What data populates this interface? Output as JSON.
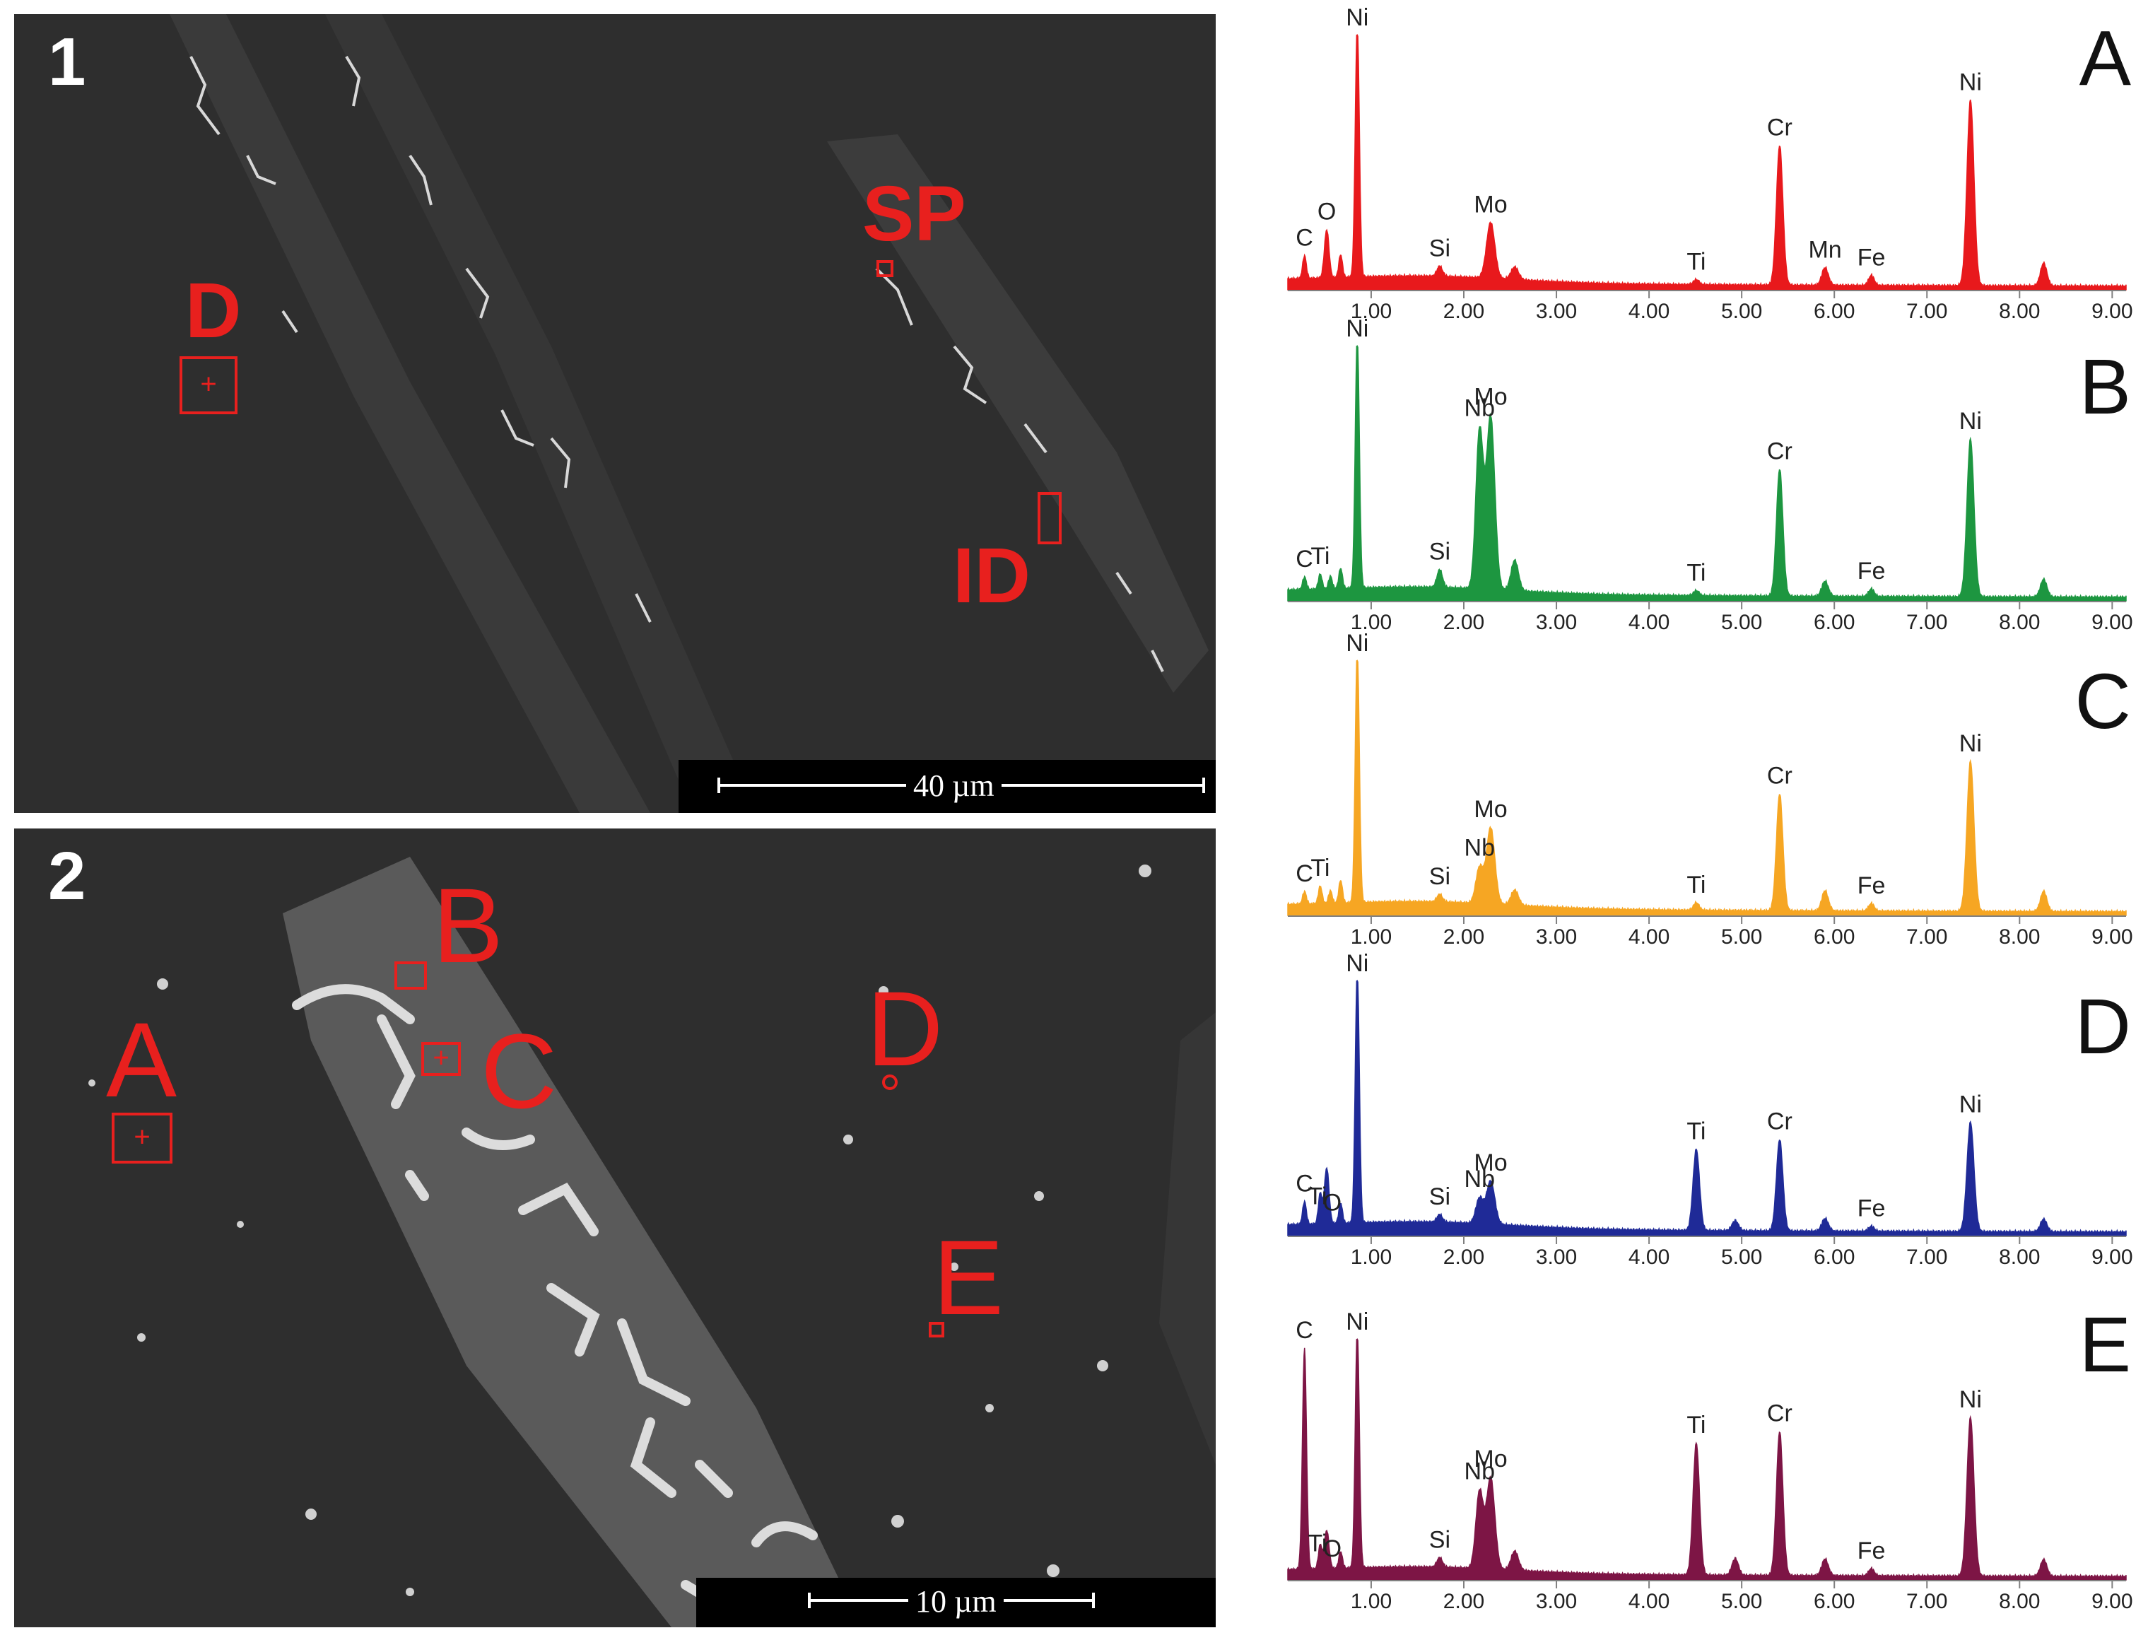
{
  "micrographs": [
    {
      "id": "1",
      "label": "1",
      "scale_label": "40 µm",
      "markers": [
        {
          "id": "D",
          "text": "D",
          "box": "square-plus"
        },
        {
          "id": "SP",
          "text": "SP",
          "box": "small"
        },
        {
          "id": "ID",
          "text": "ID",
          "box": "rect"
        }
      ]
    },
    {
      "id": "2",
      "label": "2",
      "scale_label": "10 µm",
      "markers": [
        {
          "id": "A",
          "text": "A",
          "box": "square-plus"
        },
        {
          "id": "B",
          "text": "B",
          "box": "small"
        },
        {
          "id": "C",
          "text": "C",
          "box": "small-plus"
        },
        {
          "id": "D",
          "text": "D",
          "box": "small"
        },
        {
          "id": "E",
          "text": "E",
          "box": "small"
        }
      ]
    }
  ],
  "chart_data": [
    {
      "type": "area",
      "title": "A",
      "color": "#e8191c",
      "x_ticks": [
        "1.00",
        "2.00",
        "3.00",
        "4.00",
        "5.00",
        "6.00",
        "7.00",
        "8.00",
        "9.00"
      ],
      "xlim": [
        0.1,
        9.15
      ],
      "ylim": [
        0,
        1
      ],
      "peaks": [
        {
          "x": 0.28,
          "y": 0.09,
          "w": 0.02
        },
        {
          "x": 0.52,
          "y": 0.19,
          "w": 0.025
        },
        {
          "x": 0.67,
          "y": 0.09,
          "w": 0.02
        },
        {
          "x": 0.85,
          "y": 1.0,
          "w": 0.022
        },
        {
          "x": 1.74,
          "y": 0.04,
          "w": 0.03
        },
        {
          "x": 2.29,
          "y": 0.22,
          "w": 0.045
        },
        {
          "x": 2.55,
          "y": 0.05,
          "w": 0.04
        },
        {
          "x": 4.51,
          "y": 0.02,
          "w": 0.03
        },
        {
          "x": 5.41,
          "y": 0.55,
          "w": 0.035
        },
        {
          "x": 5.9,
          "y": 0.07,
          "w": 0.035
        },
        {
          "x": 6.4,
          "y": 0.04,
          "w": 0.03
        },
        {
          "x": 7.47,
          "y": 0.73,
          "w": 0.038
        },
        {
          "x": 8.26,
          "y": 0.09,
          "w": 0.035
        }
      ],
      "labels": [
        {
          "text": "C",
          "x": 0.28,
          "y": 0.09
        },
        {
          "text": "O",
          "x": 0.52,
          "y": 0.19
        },
        {
          "text": "Ni",
          "x": 0.85,
          "y": 1.0
        },
        {
          "text": "Si",
          "x": 1.74,
          "y": 0.04
        },
        {
          "text": "Mo",
          "x": 2.29,
          "y": 0.22
        },
        {
          "text": "Ti",
          "x": 4.51,
          "y": 0.02
        },
        {
          "text": "Cr",
          "x": 5.41,
          "y": 0.55
        },
        {
          "text": "Mn",
          "x": 5.9,
          "y": 0.07
        },
        {
          "text": "Fe",
          "x": 6.4,
          "y": 0.04
        },
        {
          "text": "Ni",
          "x": 7.47,
          "y": 0.73
        }
      ]
    },
    {
      "type": "area",
      "title": "B",
      "color": "#1d9640",
      "x_ticks": [
        "1.00",
        "2.00",
        "3.00",
        "4.00",
        "5.00",
        "6.00",
        "7.00",
        "8.00",
        "9.00"
      ],
      "xlim": [
        0.1,
        9.15
      ],
      "ylim": [
        0,
        1
      ],
      "peaks": [
        {
          "x": 0.28,
          "y": 0.05,
          "w": 0.02
        },
        {
          "x": 0.45,
          "y": 0.06,
          "w": 0.02
        },
        {
          "x": 0.56,
          "y": 0.05,
          "w": 0.02
        },
        {
          "x": 0.67,
          "y": 0.08,
          "w": 0.02
        },
        {
          "x": 0.85,
          "y": 1.0,
          "w": 0.022
        },
        {
          "x": 1.74,
          "y": 0.07,
          "w": 0.03
        },
        {
          "x": 2.17,
          "y": 0.62,
          "w": 0.04
        },
        {
          "x": 2.29,
          "y": 0.68,
          "w": 0.045
        },
        {
          "x": 2.55,
          "y": 0.12,
          "w": 0.04
        },
        {
          "x": 4.51,
          "y": 0.02,
          "w": 0.03
        },
        {
          "x": 5.41,
          "y": 0.5,
          "w": 0.035
        },
        {
          "x": 5.9,
          "y": 0.06,
          "w": 0.035
        },
        {
          "x": 6.4,
          "y": 0.03,
          "w": 0.03
        },
        {
          "x": 7.47,
          "y": 0.62,
          "w": 0.038
        },
        {
          "x": 8.26,
          "y": 0.07,
          "w": 0.035
        }
      ],
      "labels": [
        {
          "text": "C",
          "x": 0.28,
          "y": 0.05
        },
        {
          "text": "Ti",
          "x": 0.45,
          "y": 0.06
        },
        {
          "text": "Ni",
          "x": 0.85,
          "y": 1.0
        },
        {
          "text": "Si",
          "x": 1.74,
          "y": 0.07
        },
        {
          "text": "Nb",
          "x": 2.17,
          "y": 0.62
        },
        {
          "text": "Mo",
          "x": 2.29,
          "y": 0.68
        },
        {
          "text": "Ti",
          "x": 4.51,
          "y": 0.02
        },
        {
          "text": "Cr",
          "x": 5.41,
          "y": 0.5
        },
        {
          "text": "Fe",
          "x": 6.4,
          "y": 0.03
        },
        {
          "text": "Ni",
          "x": 7.47,
          "y": 0.62
        }
      ]
    },
    {
      "type": "area",
      "title": "C",
      "color": "#f6a623",
      "x_ticks": [
        "1.00",
        "2.00",
        "3.00",
        "4.00",
        "5.00",
        "6.00",
        "7.00",
        "8.00",
        "9.00"
      ],
      "xlim": [
        0.1,
        9.15
      ],
      "ylim": [
        0,
        1
      ],
      "peaks": [
        {
          "x": 0.28,
          "y": 0.05,
          "w": 0.02
        },
        {
          "x": 0.45,
          "y": 0.07,
          "w": 0.02
        },
        {
          "x": 0.56,
          "y": 0.05,
          "w": 0.02
        },
        {
          "x": 0.67,
          "y": 0.09,
          "w": 0.02
        },
        {
          "x": 0.85,
          "y": 1.0,
          "w": 0.022
        },
        {
          "x": 1.74,
          "y": 0.03,
          "w": 0.03
        },
        {
          "x": 2.17,
          "y": 0.14,
          "w": 0.04
        },
        {
          "x": 2.29,
          "y": 0.3,
          "w": 0.045
        },
        {
          "x": 2.55,
          "y": 0.06,
          "w": 0.04
        },
        {
          "x": 4.51,
          "y": 0.03,
          "w": 0.03
        },
        {
          "x": 5.41,
          "y": 0.46,
          "w": 0.035
        },
        {
          "x": 5.9,
          "y": 0.08,
          "w": 0.035
        },
        {
          "x": 6.4,
          "y": 0.03,
          "w": 0.03
        },
        {
          "x": 7.47,
          "y": 0.59,
          "w": 0.038
        },
        {
          "x": 8.26,
          "y": 0.08,
          "w": 0.035
        }
      ],
      "labels": [
        {
          "text": "C",
          "x": 0.28,
          "y": 0.05
        },
        {
          "text": "Ti",
          "x": 0.45,
          "y": 0.07
        },
        {
          "text": "Ni",
          "x": 0.85,
          "y": 1.0
        },
        {
          "text": "Si",
          "x": 1.74,
          "y": 0.03
        },
        {
          "text": "Nb",
          "x": 2.17,
          "y": 0.14
        },
        {
          "text": "Mo",
          "x": 2.29,
          "y": 0.3
        },
        {
          "text": "Ti",
          "x": 4.51,
          "y": 0.03
        },
        {
          "text": "Cr",
          "x": 5.41,
          "y": 0.46
        },
        {
          "text": "Fe",
          "x": 6.4,
          "y": 0.03
        },
        {
          "text": "Ni",
          "x": 7.47,
          "y": 0.59
        }
      ]
    },
    {
      "type": "area",
      "title": "D",
      "color": "#1f2a97",
      "x_ticks": [
        "1.00",
        "2.00",
        "3.00",
        "4.00",
        "5.00",
        "6.00",
        "7.00",
        "8.00",
        "9.00"
      ],
      "xlim": [
        0.1,
        9.15
      ],
      "ylim": [
        0,
        1
      ],
      "peaks": [
        {
          "x": 0.28,
          "y": 0.09,
          "w": 0.02
        },
        {
          "x": 0.45,
          "y": 0.12,
          "w": 0.02
        },
        {
          "x": 0.52,
          "y": 0.22,
          "w": 0.025
        },
        {
          "x": 0.67,
          "y": 0.08,
          "w": 0.02
        },
        {
          "x": 0.85,
          "y": 1.0,
          "w": 0.022
        },
        {
          "x": 1.74,
          "y": 0.03,
          "w": 0.03
        },
        {
          "x": 2.17,
          "y": 0.1,
          "w": 0.04
        },
        {
          "x": 2.29,
          "y": 0.17,
          "w": 0.045
        },
        {
          "x": 4.51,
          "y": 0.32,
          "w": 0.035
        },
        {
          "x": 4.93,
          "y": 0.04,
          "w": 0.035
        },
        {
          "x": 5.41,
          "y": 0.36,
          "w": 0.035
        },
        {
          "x": 5.9,
          "y": 0.05,
          "w": 0.035
        },
        {
          "x": 6.4,
          "y": 0.02,
          "w": 0.03
        },
        {
          "x": 7.47,
          "y": 0.43,
          "w": 0.038
        },
        {
          "x": 8.26,
          "y": 0.05,
          "w": 0.035
        }
      ],
      "labels": [
        {
          "text": "C",
          "x": 0.28,
          "y": 0.09
        },
        {
          "text": "Ti",
          "x": 0.42,
          "y": 0.12
        },
        {
          "text": "O",
          "x": 0.58,
          "y": 0.22
        },
        {
          "text": "Ni",
          "x": 0.85,
          "y": 1.0
        },
        {
          "text": "Si",
          "x": 1.74,
          "y": 0.03
        },
        {
          "text": "Nb",
          "x": 2.17,
          "y": 0.1
        },
        {
          "text": "Mo",
          "x": 2.29,
          "y": 0.17
        },
        {
          "text": "Ti",
          "x": 4.51,
          "y": 0.32
        },
        {
          "text": "Cr",
          "x": 5.41,
          "y": 0.36
        },
        {
          "text": "Fe",
          "x": 6.4,
          "y": 0.02
        },
        {
          "text": "Ni",
          "x": 7.47,
          "y": 0.43
        }
      ]
    },
    {
      "type": "area",
      "title": "E",
      "color": "#7d1545",
      "x_ticks": [
        "1.00",
        "2.00",
        "3.00",
        "4.00",
        "5.00",
        "6.00",
        "7.00",
        "8.00",
        "9.00"
      ],
      "xlim": [
        0.1,
        9.15
      ],
      "ylim": [
        0,
        1
      ],
      "peaks": [
        {
          "x": 0.28,
          "y": 0.92,
          "w": 0.022
        },
        {
          "x": 0.45,
          "y": 0.1,
          "w": 0.02
        },
        {
          "x": 0.52,
          "y": 0.16,
          "w": 0.025
        },
        {
          "x": 0.67,
          "y": 0.07,
          "w": 0.02
        },
        {
          "x": 0.85,
          "y": 1.0,
          "w": 0.022
        },
        {
          "x": 1.74,
          "y": 0.04,
          "w": 0.03
        },
        {
          "x": 2.17,
          "y": 0.32,
          "w": 0.04
        },
        {
          "x": 2.29,
          "y": 0.38,
          "w": 0.045
        },
        {
          "x": 2.55,
          "y": 0.08,
          "w": 0.04
        },
        {
          "x": 4.51,
          "y": 0.55,
          "w": 0.035
        },
        {
          "x": 4.93,
          "y": 0.07,
          "w": 0.035
        },
        {
          "x": 5.41,
          "y": 0.6,
          "w": 0.035
        },
        {
          "x": 5.9,
          "y": 0.07,
          "w": 0.035
        },
        {
          "x": 6.4,
          "y": 0.03,
          "w": 0.03
        },
        {
          "x": 7.47,
          "y": 0.66,
          "w": 0.038
        },
        {
          "x": 8.26,
          "y": 0.07,
          "w": 0.035
        }
      ],
      "labels": [
        {
          "text": "C",
          "x": 0.28,
          "y": 0.92
        },
        {
          "text": "Ti",
          "x": 0.42,
          "y": 0.1
        },
        {
          "text": "O",
          "x": 0.58,
          "y": 0.16
        },
        {
          "text": "Ni",
          "x": 0.85,
          "y": 1.0
        },
        {
          "text": "Si",
          "x": 1.74,
          "y": 0.04
        },
        {
          "text": "Nb",
          "x": 2.17,
          "y": 0.32
        },
        {
          "text": "Mo",
          "x": 2.29,
          "y": 0.38
        },
        {
          "text": "Ti",
          "x": 4.51,
          "y": 0.55
        },
        {
          "text": "Cr",
          "x": 5.41,
          "y": 0.6
        },
        {
          "text": "Fe",
          "x": 6.4,
          "y": 0.03
        },
        {
          "text": "Ni",
          "x": 7.47,
          "y": 0.66
        }
      ]
    }
  ]
}
